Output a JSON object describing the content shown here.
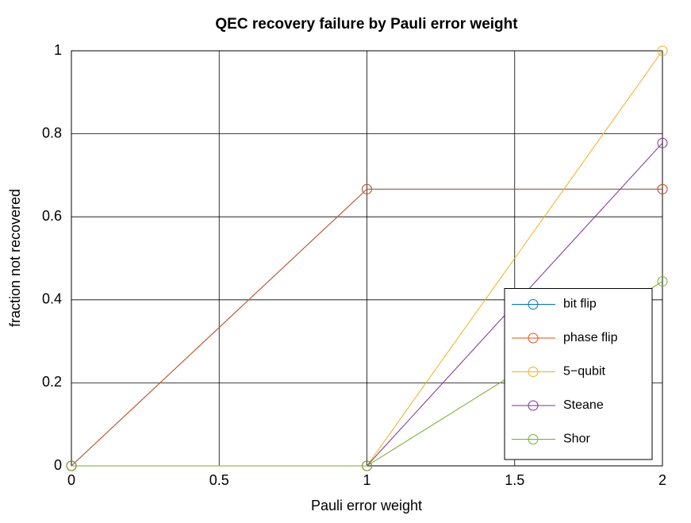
{
  "chart_data": {
    "type": "line",
    "title": "QEC recovery failure by Pauli error weight",
    "x_label": "Pauli error weight",
    "y_label": "fraction not recovered",
    "x": [
      0,
      1,
      2
    ],
    "series": [
      {
        "name": "bit flip",
        "color": "#0072bd",
        "values": [
          0,
          0.6667,
          0.6667
        ]
      },
      {
        "name": "phase flip",
        "color": "#d95319",
        "values": [
          0,
          0.6667,
          0.6667
        ]
      },
      {
        "name": "5−qubit",
        "color": "#edb120",
        "values": [
          0,
          0,
          1
        ]
      },
      {
        "name": "Steane",
        "color": "#7e2f8e",
        "values": [
          0,
          0,
          0.7778
        ]
      },
      {
        "name": "Shor",
        "color": "#77ac30",
        "values": [
          0,
          0,
          0.4444
        ]
      }
    ],
    "xlim": [
      0,
      2
    ],
    "xticks": [
      0,
      0.5,
      1,
      1.5,
      2
    ],
    "ylim": [
      0,
      1
    ],
    "yticks": [
      0,
      0.2,
      0.4,
      0.6,
      0.8,
      1
    ],
    "grid": true,
    "legend_position": "southeast"
  }
}
